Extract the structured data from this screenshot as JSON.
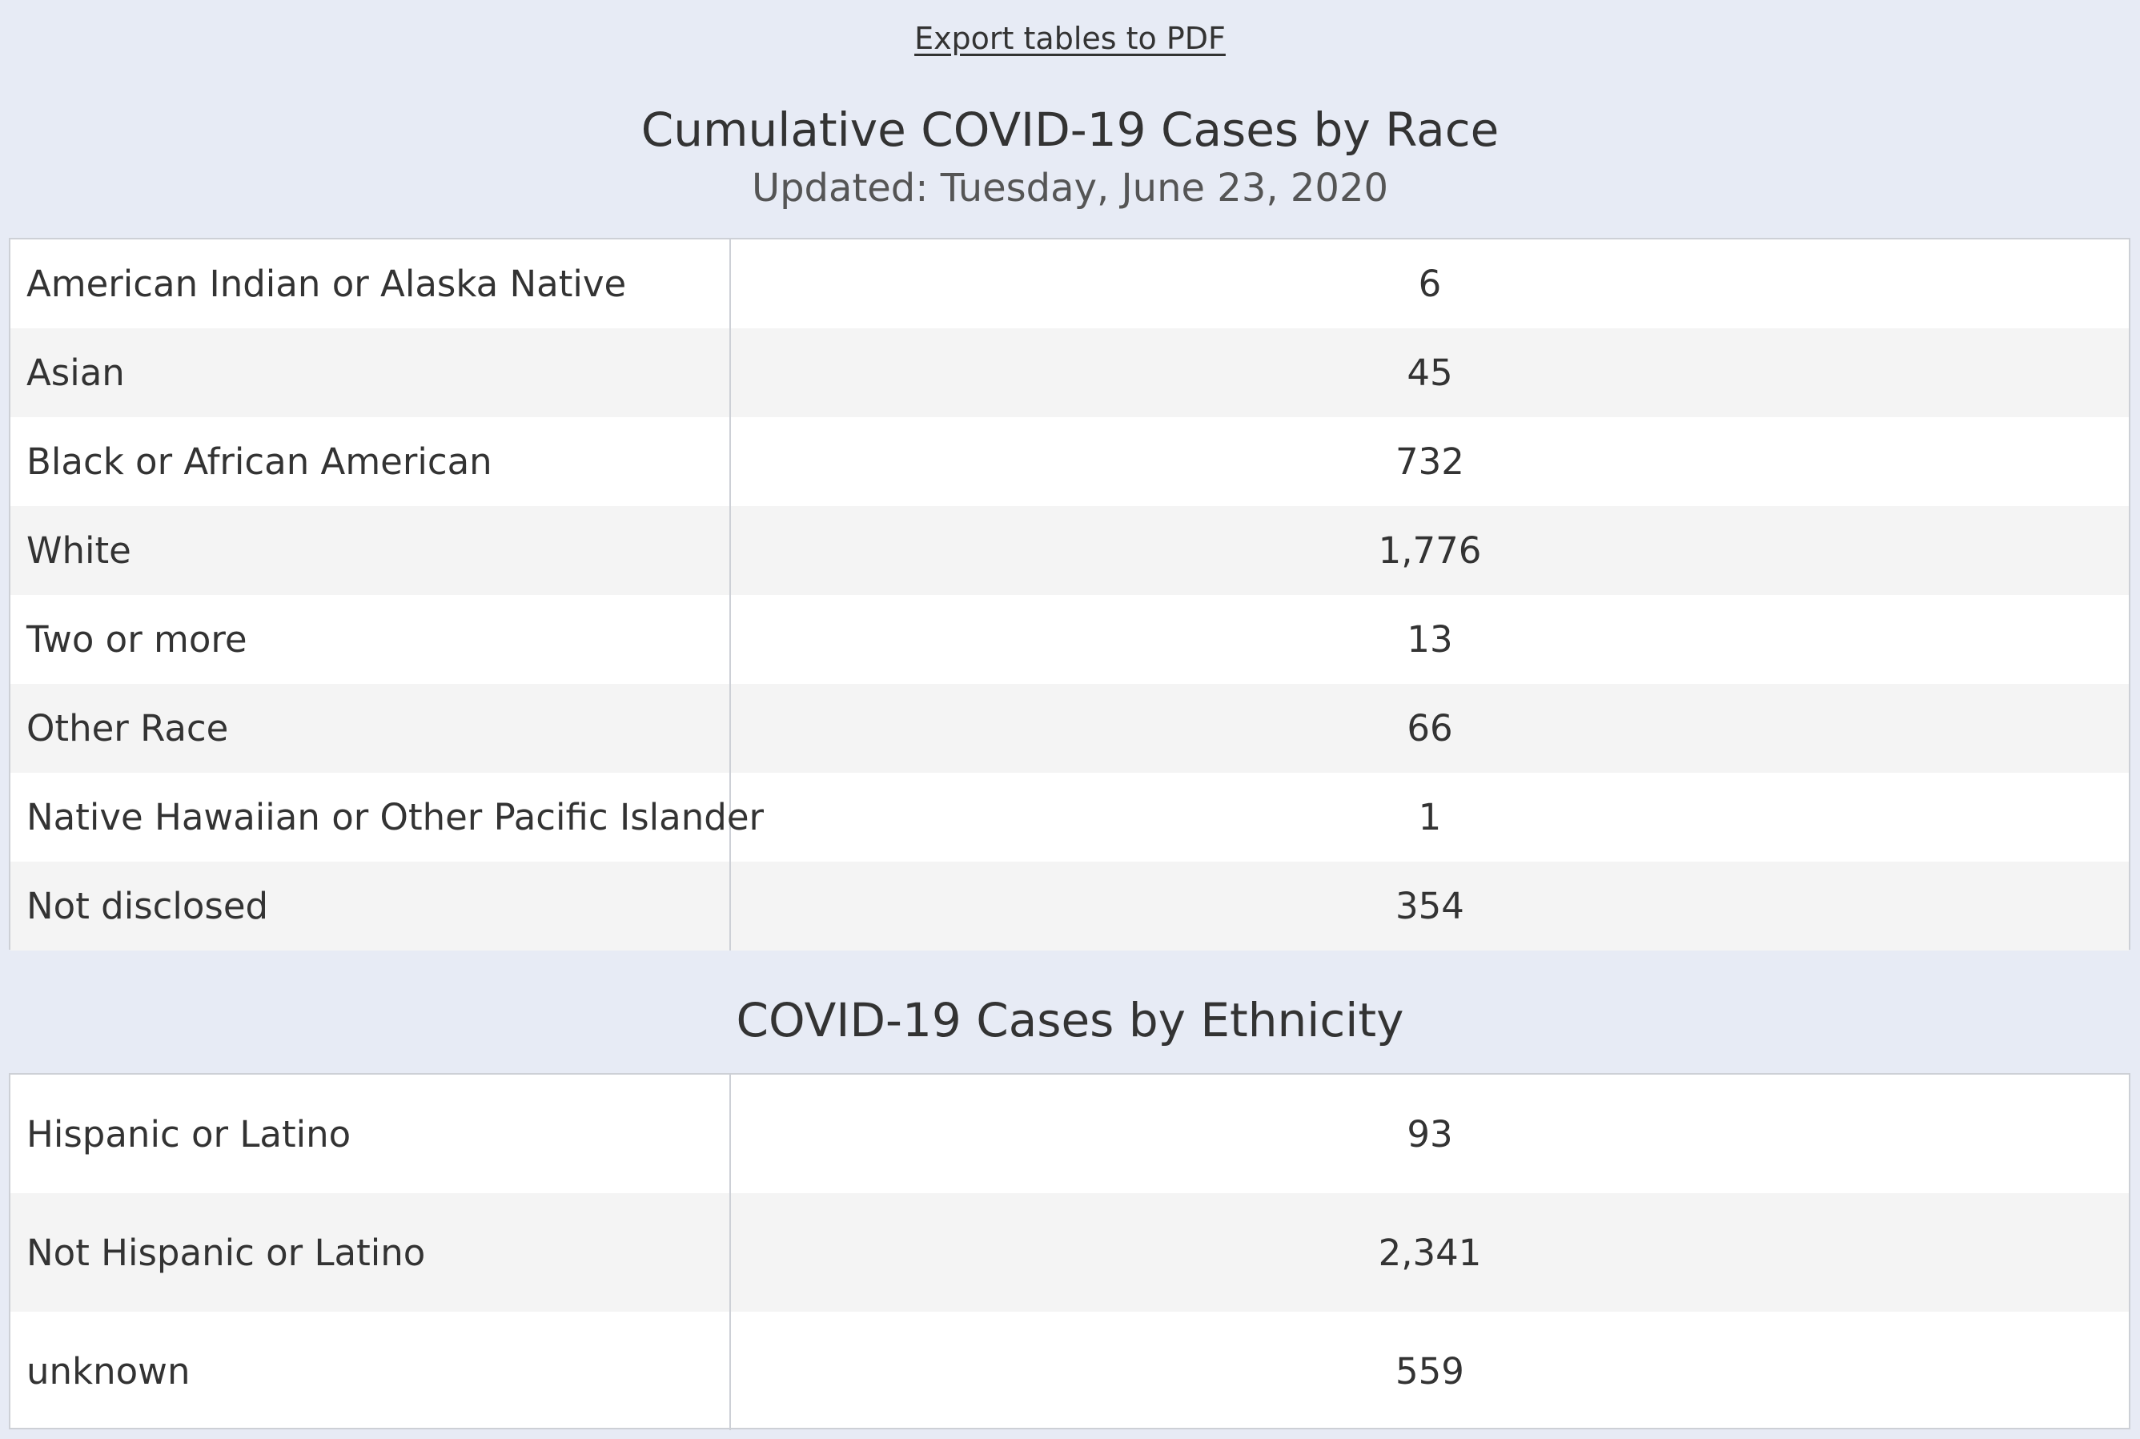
{
  "export_link": "Export tables to PDF",
  "race_table": {
    "title": "Cumulative COVID-19 Cases by Race",
    "subtitle": "Updated: Tuesday, June 23, 2020",
    "rows": [
      {
        "label": "American Indian or Alaska Native",
        "value": "6"
      },
      {
        "label": "Asian",
        "value": "45"
      },
      {
        "label": "Black or African American",
        "value": "732"
      },
      {
        "label": "White",
        "value": "1,776"
      },
      {
        "label": "Two or more",
        "value": "13"
      },
      {
        "label": "Other Race",
        "value": "66"
      },
      {
        "label": "Native Hawaiian or Other Pacific Islander",
        "value": "1"
      },
      {
        "label": "Not disclosed",
        "value": "354"
      }
    ]
  },
  "ethnicity_table": {
    "title": "COVID-19 Cases by Ethnicity",
    "rows": [
      {
        "label": "Hispanic or Latino",
        "value": "93"
      },
      {
        "label": "Not Hispanic or Latino",
        "value": "2,341"
      },
      {
        "label": "unknown",
        "value": "559"
      }
    ]
  },
  "colors": {
    "background": "#e7ebf5",
    "row_alt": "#f4f4f4",
    "text": "#333333",
    "border": "#cdd0d6"
  }
}
